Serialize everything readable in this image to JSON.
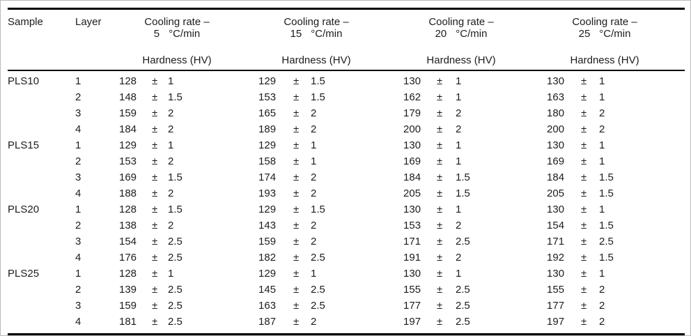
{
  "meta": {
    "background": "#ffffff",
    "frame_color": "#b9b9b9",
    "rule_color": "#000000",
    "text_color": "#1c1c1c"
  },
  "table": {
    "pm": "±",
    "col_sample": "Sample",
    "col_layer": "Layer",
    "group_title": "Cooling rate –",
    "group_subheader": "Hardness (HV)",
    "groups": [
      {
        "rate": "5",
        "unit": "°C/min"
      },
      {
        "rate": "15",
        "unit": "°C/min"
      },
      {
        "rate": "20",
        "unit": "°C/min"
      },
      {
        "rate": "25",
        "unit": "°C/min"
      }
    ],
    "rows": [
      {
        "sample": "PLS10",
        "layer": "1",
        "values": [
          {
            "v": "128",
            "e": "1"
          },
          {
            "v": "129",
            "e": "1.5"
          },
          {
            "v": "130",
            "e": "1"
          },
          {
            "v": "130",
            "e": "1"
          }
        ]
      },
      {
        "sample": "",
        "layer": "2",
        "values": [
          {
            "v": "148",
            "e": "1.5"
          },
          {
            "v": "153",
            "e": "1.5"
          },
          {
            "v": "162",
            "e": "1"
          },
          {
            "v": "163",
            "e": "1"
          }
        ]
      },
      {
        "sample": "",
        "layer": "3",
        "values": [
          {
            "v": "159",
            "e": "2"
          },
          {
            "v": "165",
            "e": "2"
          },
          {
            "v": "179",
            "e": "2"
          },
          {
            "v": "180",
            "e": "2"
          }
        ]
      },
      {
        "sample": "",
        "layer": "4",
        "values": [
          {
            "v": "184",
            "e": "2"
          },
          {
            "v": "189",
            "e": "2"
          },
          {
            "v": "200",
            "e": "2"
          },
          {
            "v": "200",
            "e": "2"
          }
        ]
      },
      {
        "sample": "PLS15",
        "layer": "1",
        "values": [
          {
            "v": "129",
            "e": "1"
          },
          {
            "v": "129",
            "e": "1"
          },
          {
            "v": "130",
            "e": "1"
          },
          {
            "v": "130",
            "e": "1"
          }
        ]
      },
      {
        "sample": "",
        "layer": "2",
        "values": [
          {
            "v": "153",
            "e": "2"
          },
          {
            "v": "158",
            "e": "1"
          },
          {
            "v": "169",
            "e": "1"
          },
          {
            "v": "169",
            "e": "1"
          }
        ]
      },
      {
        "sample": "",
        "layer": "3",
        "values": [
          {
            "v": "169",
            "e": "1.5"
          },
          {
            "v": "174",
            "e": "2"
          },
          {
            "v": "184",
            "e": "1.5"
          },
          {
            "v": "184",
            "e": "1.5"
          }
        ]
      },
      {
        "sample": "",
        "layer": "4",
        "values": [
          {
            "v": "188",
            "e": "2"
          },
          {
            "v": "193",
            "e": "2"
          },
          {
            "v": "205",
            "e": "1.5"
          },
          {
            "v": "205",
            "e": "1.5"
          }
        ]
      },
      {
        "sample": "PLS20",
        "layer": "1",
        "values": [
          {
            "v": "128",
            "e": "1.5"
          },
          {
            "v": "129",
            "e": "1.5"
          },
          {
            "v": "130",
            "e": "1"
          },
          {
            "v": "130",
            "e": "1"
          }
        ]
      },
      {
        "sample": "",
        "layer": "2",
        "values": [
          {
            "v": "138",
            "e": "2"
          },
          {
            "v": "143",
            "e": "2"
          },
          {
            "v": "153",
            "e": "2"
          },
          {
            "v": "154",
            "e": "1.5"
          }
        ]
      },
      {
        "sample": "",
        "layer": "3",
        "values": [
          {
            "v": "154",
            "e": "2.5"
          },
          {
            "v": "159",
            "e": "2"
          },
          {
            "v": "171",
            "e": "2.5"
          },
          {
            "v": "171",
            "e": "2.5"
          }
        ]
      },
      {
        "sample": "",
        "layer": "4",
        "values": [
          {
            "v": "176",
            "e": "2.5"
          },
          {
            "v": "182",
            "e": "2.5"
          },
          {
            "v": "191",
            "e": "2"
          },
          {
            "v": "192",
            "e": "1.5"
          }
        ]
      },
      {
        "sample": "PLS25",
        "layer": "1",
        "values": [
          {
            "v": "128",
            "e": "1"
          },
          {
            "v": "129",
            "e": "1"
          },
          {
            "v": "130",
            "e": "1"
          },
          {
            "v": "130",
            "e": "1"
          }
        ]
      },
      {
        "sample": "",
        "layer": "2",
        "values": [
          {
            "v": "139",
            "e": "2.5"
          },
          {
            "v": "145",
            "e": "2.5"
          },
          {
            "v": "155",
            "e": "2.5"
          },
          {
            "v": "155",
            "e": "2"
          }
        ]
      },
      {
        "sample": "",
        "layer": "3",
        "values": [
          {
            "v": "159",
            "e": "2.5"
          },
          {
            "v": "163",
            "e": "2.5"
          },
          {
            "v": "177",
            "e": "2.5"
          },
          {
            "v": "177",
            "e": "2"
          }
        ]
      },
      {
        "sample": "",
        "layer": "4",
        "values": [
          {
            "v": "181",
            "e": "2.5"
          },
          {
            "v": "187",
            "e": "2"
          },
          {
            "v": "197",
            "e": "2.5"
          },
          {
            "v": "197",
            "e": "2"
          }
        ]
      }
    ]
  }
}
